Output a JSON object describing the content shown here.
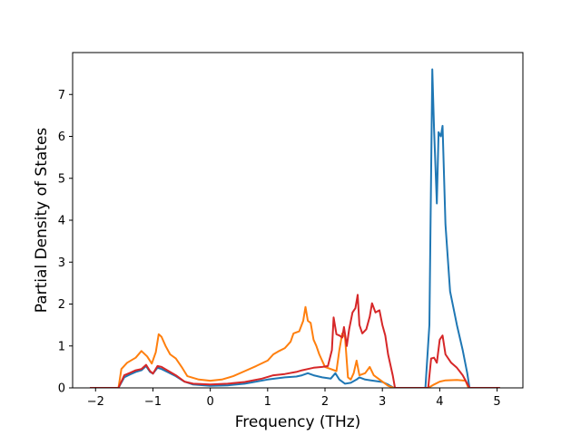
{
  "chart_data": {
    "type": "line",
    "title": "",
    "xlabel": "Frequency (THz)",
    "ylabel": "Partial Density of States",
    "xlim": [
      -2.4,
      5.45
    ],
    "ylim": [
      0,
      8.0
    ],
    "xticks": [
      -2,
      -1,
      0,
      1,
      2,
      3,
      4,
      5
    ],
    "yticks": [
      0,
      1,
      2,
      3,
      4,
      5,
      6,
      7
    ],
    "grid": false,
    "legend": "none",
    "series": [
      {
        "color": "#1f77b4",
        "points": [
          [
            -2.1,
            0
          ],
          [
            -1.6,
            0
          ],
          [
            -1.5,
            0.25
          ],
          [
            -1.4,
            0.32
          ],
          [
            -1.3,
            0.38
          ],
          [
            -1.2,
            0.42
          ],
          [
            -1.12,
            0.52
          ],
          [
            -1.05,
            0.38
          ],
          [
            -1.0,
            0.34
          ],
          [
            -0.92,
            0.48
          ],
          [
            -0.85,
            0.45
          ],
          [
            -0.75,
            0.38
          ],
          [
            -0.6,
            0.28
          ],
          [
            -0.45,
            0.15
          ],
          [
            -0.3,
            0.08
          ],
          [
            0.0,
            0.05
          ],
          [
            0.3,
            0.06
          ],
          [
            0.6,
            0.1
          ],
          [
            1.0,
            0.2
          ],
          [
            1.3,
            0.25
          ],
          [
            1.5,
            0.27
          ],
          [
            1.6,
            0.3
          ],
          [
            1.7,
            0.35
          ],
          [
            1.8,
            0.3
          ],
          [
            1.95,
            0.25
          ],
          [
            2.1,
            0.22
          ],
          [
            2.18,
            0.35
          ],
          [
            2.25,
            0.2
          ],
          [
            2.35,
            0.1
          ],
          [
            2.45,
            0.12
          ],
          [
            2.55,
            0.2
          ],
          [
            2.6,
            0.25
          ],
          [
            2.7,
            0.2
          ],
          [
            2.8,
            0.18
          ],
          [
            2.9,
            0.16
          ],
          [
            3.0,
            0.14
          ],
          [
            3.1,
            0.08
          ],
          [
            3.2,
            0
          ],
          [
            3.75,
            0
          ],
          [
            3.82,
            1.5
          ],
          [
            3.87,
            7.6
          ],
          [
            3.9,
            6.2
          ],
          [
            3.95,
            4.4
          ],
          [
            3.98,
            6.1
          ],
          [
            4.02,
            6.0
          ],
          [
            4.05,
            6.25
          ],
          [
            4.1,
            3.9
          ],
          [
            4.18,
            2.3
          ],
          [
            4.3,
            1.5
          ],
          [
            4.4,
            0.9
          ],
          [
            4.48,
            0.35
          ],
          [
            4.52,
            0
          ],
          [
            5.05,
            0
          ]
        ]
      },
      {
        "color": "#ff7f0e",
        "points": [
          [
            -2.1,
            0
          ],
          [
            -1.6,
            0
          ],
          [
            -1.55,
            0.45
          ],
          [
            -1.45,
            0.6
          ],
          [
            -1.3,
            0.72
          ],
          [
            -1.2,
            0.88
          ],
          [
            -1.1,
            0.75
          ],
          [
            -1.02,
            0.58
          ],
          [
            -0.95,
            0.85
          ],
          [
            -0.9,
            1.28
          ],
          [
            -0.85,
            1.22
          ],
          [
            -0.78,
            1.0
          ],
          [
            -0.7,
            0.8
          ],
          [
            -0.6,
            0.7
          ],
          [
            -0.5,
            0.5
          ],
          [
            -0.4,
            0.28
          ],
          [
            -0.2,
            0.2
          ],
          [
            0.0,
            0.17
          ],
          [
            0.2,
            0.2
          ],
          [
            0.4,
            0.28
          ],
          [
            0.6,
            0.4
          ],
          [
            0.8,
            0.52
          ],
          [
            1.0,
            0.65
          ],
          [
            1.1,
            0.8
          ],
          [
            1.2,
            0.88
          ],
          [
            1.3,
            0.95
          ],
          [
            1.4,
            1.1
          ],
          [
            1.45,
            1.3
          ],
          [
            1.55,
            1.35
          ],
          [
            1.62,
            1.6
          ],
          [
            1.66,
            1.93
          ],
          [
            1.7,
            1.6
          ],
          [
            1.75,
            1.55
          ],
          [
            1.8,
            1.15
          ],
          [
            1.85,
            1.0
          ],
          [
            1.9,
            0.8
          ],
          [
            2.0,
            0.5
          ],
          [
            2.1,
            0.45
          ],
          [
            2.2,
            0.4
          ],
          [
            2.25,
            0.9
          ],
          [
            2.3,
            1.3
          ],
          [
            2.35,
            1.2
          ],
          [
            2.4,
            0.25
          ],
          [
            2.45,
            0.2
          ],
          [
            2.5,
            0.35
          ],
          [
            2.55,
            0.65
          ],
          [
            2.6,
            0.3
          ],
          [
            2.7,
            0.35
          ],
          [
            2.78,
            0.5
          ],
          [
            2.85,
            0.3
          ],
          [
            2.9,
            0.25
          ],
          [
            3.0,
            0.15
          ],
          [
            3.1,
            0.05
          ],
          [
            3.2,
            0
          ],
          [
            3.8,
            0
          ],
          [
            3.9,
            0.08
          ],
          [
            4.0,
            0.15
          ],
          [
            4.1,
            0.18
          ],
          [
            4.3,
            0.19
          ],
          [
            4.45,
            0.17
          ],
          [
            4.5,
            0
          ],
          [
            5.05,
            0
          ]
        ]
      },
      {
        "color": "#d62728",
        "points": [
          [
            -2.1,
            0
          ],
          [
            -1.6,
            0
          ],
          [
            -1.5,
            0.3
          ],
          [
            -1.4,
            0.36
          ],
          [
            -1.3,
            0.42
          ],
          [
            -1.2,
            0.45
          ],
          [
            -1.12,
            0.55
          ],
          [
            -1.05,
            0.4
          ],
          [
            -1.0,
            0.34
          ],
          [
            -0.92,
            0.52
          ],
          [
            -0.85,
            0.5
          ],
          [
            -0.75,
            0.42
          ],
          [
            -0.6,
            0.3
          ],
          [
            -0.45,
            0.15
          ],
          [
            -0.3,
            0.1
          ],
          [
            0.0,
            0.08
          ],
          [
            0.3,
            0.1
          ],
          [
            0.6,
            0.14
          ],
          [
            0.9,
            0.22
          ],
          [
            1.1,
            0.3
          ],
          [
            1.3,
            0.33
          ],
          [
            1.5,
            0.38
          ],
          [
            1.6,
            0.42
          ],
          [
            1.7,
            0.45
          ],
          [
            1.8,
            0.48
          ],
          [
            1.95,
            0.5
          ],
          [
            2.05,
            0.52
          ],
          [
            2.12,
            0.9
          ],
          [
            2.15,
            1.68
          ],
          [
            2.2,
            1.28
          ],
          [
            2.25,
            1.25
          ],
          [
            2.3,
            1.2
          ],
          [
            2.33,
            1.45
          ],
          [
            2.38,
            1.0
          ],
          [
            2.42,
            1.4
          ],
          [
            2.48,
            1.8
          ],
          [
            2.53,
            1.9
          ],
          [
            2.57,
            2.22
          ],
          [
            2.6,
            1.5
          ],
          [
            2.65,
            1.3
          ],
          [
            2.72,
            1.4
          ],
          [
            2.78,
            1.7
          ],
          [
            2.82,
            2.02
          ],
          [
            2.88,
            1.8
          ],
          [
            2.95,
            1.85
          ],
          [
            3.0,
            1.5
          ],
          [
            3.05,
            1.25
          ],
          [
            3.1,
            0.8
          ],
          [
            3.18,
            0.3
          ],
          [
            3.22,
            0
          ],
          [
            3.8,
            0
          ],
          [
            3.85,
            0.7
          ],
          [
            3.9,
            0.72
          ],
          [
            3.95,
            0.6
          ],
          [
            4.0,
            1.15
          ],
          [
            4.05,
            1.25
          ],
          [
            4.1,
            0.8
          ],
          [
            4.2,
            0.6
          ],
          [
            4.3,
            0.48
          ],
          [
            4.4,
            0.3
          ],
          [
            4.48,
            0.1
          ],
          [
            4.52,
            0
          ],
          [
            5.05,
            0
          ]
        ]
      }
    ]
  }
}
